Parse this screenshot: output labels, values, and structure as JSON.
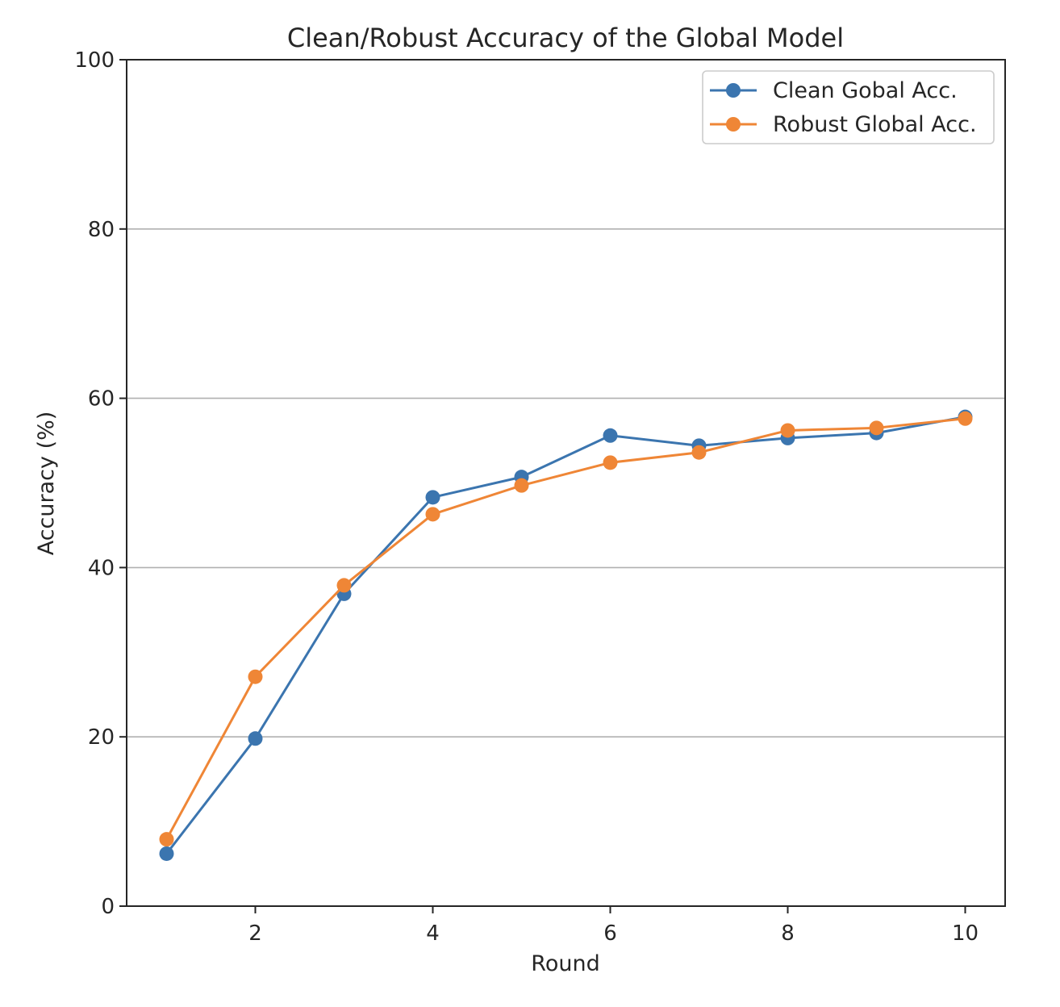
{
  "chart_data": {
    "type": "line",
    "title": "Clean/Robust Accuracy of the Global Model",
    "xlabel": "Round",
    "ylabel": "Accuracy (%)",
    "x": [
      1,
      2,
      3,
      4,
      5,
      6,
      7,
      8,
      9,
      10
    ],
    "xlim": [
      0.55,
      10.45
    ],
    "ylim": [
      0,
      100
    ],
    "xticks": [
      2,
      4,
      6,
      8,
      10
    ],
    "yticks": [
      0,
      20,
      40,
      60,
      80,
      100
    ],
    "grid": "horizontal",
    "legend_position": "top-right",
    "series": [
      {
        "name": "Clean Gobal Acc.",
        "color": "#3b75af",
        "values": [
          6.2,
          19.8,
          36.9,
          48.3,
          50.7,
          55.6,
          54.4,
          55.3,
          55.9,
          57.8
        ]
      },
      {
        "name": "Robust Global Acc.",
        "color": "#ef8636",
        "values": [
          7.9,
          27.1,
          37.9,
          46.3,
          49.7,
          52.4,
          53.6,
          56.2,
          56.5,
          57.6
        ]
      }
    ]
  }
}
